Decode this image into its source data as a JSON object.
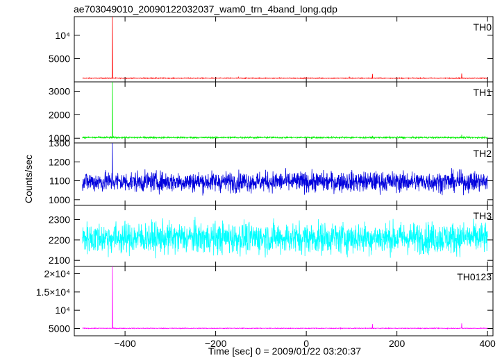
{
  "title": "ae703049010_20090122032037_wam0_trn_4band_long.qdp",
  "ylabel": "Counts/sec",
  "xlabel": "Time [sec] 0 = 2009/01/22 03:20:37",
  "chart_data": [
    {
      "type": "line",
      "name": "TH0",
      "color": "#ff0000",
      "xlim": [
        -512,
        412
      ],
      "ylim": [
        0,
        14000
      ],
      "yticks": [
        {
          "v": 5000,
          "label": "5000"
        },
        {
          "v": 10000,
          "label": "10⁴"
        }
      ],
      "baseline": 800,
      "noise": 60,
      "spikes": [
        {
          "x": -428,
          "y": 14000
        },
        {
          "x": 146,
          "y": 1700
        },
        {
          "x": 343,
          "y": 1800
        },
        {
          "x": 95,
          "y": 1100
        },
        {
          "x": -150,
          "y": 1000
        }
      ]
    },
    {
      "type": "line",
      "name": "TH1",
      "color": "#00ee00",
      "xlim": [
        -512,
        412
      ],
      "ylim": [
        800,
        3400
      ],
      "yticks": [
        {
          "v": 1000,
          "label": "1000"
        },
        {
          "v": 2000,
          "label": "2000"
        },
        {
          "v": 3000,
          "label": "3000"
        }
      ],
      "baseline": 1030,
      "noise": 25,
      "spikes": [
        {
          "x": -428,
          "y": 3400
        },
        {
          "x": 343,
          "y": 1150
        },
        {
          "x": 146,
          "y": 1100
        }
      ]
    },
    {
      "type": "line",
      "name": "TH2",
      "color": "#0000dd",
      "xlim": [
        -512,
        412
      ],
      "ylim": [
        970,
        1300
      ],
      "yticks": [
        {
          "v": 1000,
          "label": "1000"
        },
        {
          "v": 1100,
          "label": "1100"
        },
        {
          "v": 1200,
          "label": "1200"
        },
        {
          "v": 1300,
          "label": "1300"
        }
      ],
      "baseline": 1095,
      "noise": 38,
      "spikes": [
        {
          "x": -428,
          "y": 1300
        }
      ]
    },
    {
      "type": "line",
      "name": "TH3",
      "color": "#00ffff",
      "xlim": [
        -512,
        412
      ],
      "ylim": [
        2070,
        2370
      ],
      "yticks": [
        {
          "v": 2100,
          "label": "2100"
        },
        {
          "v": 2200,
          "label": "2200"
        },
        {
          "v": 2300,
          "label": "2300"
        }
      ],
      "baseline": 2210,
      "noise": 55,
      "spikes": []
    },
    {
      "type": "line",
      "name": "TH0123",
      "color": "#ff00ff",
      "xlim": [
        -512,
        412
      ],
      "ylim": [
        3000,
        22000
      ],
      "yticks": [
        {
          "v": 5000,
          "label": "5000"
        },
        {
          "v": 10000,
          "label": "10⁴"
        },
        {
          "v": 15000,
          "label": "1.5×10⁴"
        },
        {
          "v": 20000,
          "label": "2×10⁴"
        }
      ],
      "baseline": 5050,
      "noise": 70,
      "spikes": [
        {
          "x": -428,
          "y": 22000
        },
        {
          "x": 146,
          "y": 6200
        },
        {
          "x": 343,
          "y": 6400
        }
      ]
    }
  ],
  "xticks": [
    {
      "v": -400,
      "label": "−400"
    },
    {
      "v": -200,
      "label": "−200"
    },
    {
      "v": 0,
      "label": "0"
    },
    {
      "v": 200,
      "label": "200"
    },
    {
      "v": 400,
      "label": "400"
    }
  ]
}
